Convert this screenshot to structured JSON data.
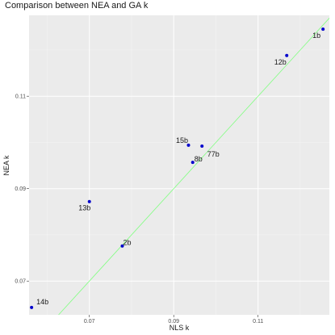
{
  "chart_data": {
    "type": "scatter",
    "title": "Comparison between NEA and GA k",
    "xlabel": "NLS k",
    "ylabel": "NEA k",
    "xlim": [
      0.0557,
      0.1269
    ],
    "ylim": [
      0.0627,
      0.1275
    ],
    "x_ticks": [
      0.07,
      0.09,
      0.11
    ],
    "x_tick_labels": [
      "0.07",
      "0.09",
      "0.11"
    ],
    "y_ticks": [
      0.07,
      0.09,
      0.11
    ],
    "y_tick_labels": [
      "0.07",
      "0.09",
      "0.11"
    ],
    "grid": true,
    "legend": "none",
    "reference_line": {
      "type": "identity",
      "color": "#80ff80"
    },
    "point_color": "#0000cc",
    "points": [
      {
        "label": "1b",
        "x": 0.1254,
        "y": 0.1245
      },
      {
        "label": "12b",
        "x": 0.1168,
        "y": 0.1188
      },
      {
        "label": "15b",
        "x": 0.0935,
        "y": 0.0994
      },
      {
        "label": "77b",
        "x": 0.0967,
        "y": 0.0992
      },
      {
        "label": "8b",
        "x": 0.0945,
        "y": 0.0957
      },
      {
        "label": "13b",
        "x": 0.07,
        "y": 0.0872
      },
      {
        "label": "2b",
        "x": 0.0778,
        "y": 0.0776
      },
      {
        "label": "14b",
        "x": 0.0563,
        "y": 0.0643
      }
    ]
  }
}
